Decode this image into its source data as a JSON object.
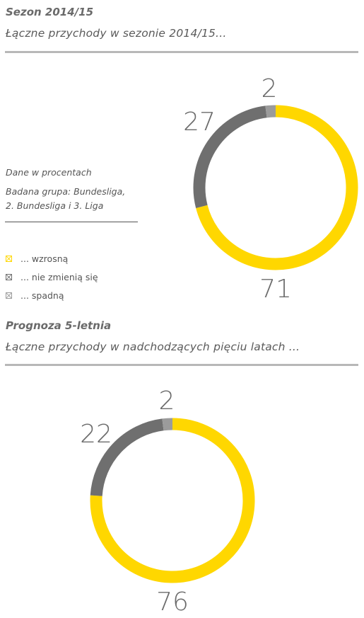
{
  "section1": {
    "title": "Sezon 2014/15",
    "subtitle": "Łączne przychody w sezonie 2014/15..."
  },
  "notes": {
    "unit": "Dane w procentach",
    "group_line1": "Badana grupa: Bundesliga,",
    "group_line2": "2. Bundesliga i 3. Liga"
  },
  "legend": [
    {
      "label": "... wzrosną",
      "color": "#FFD700"
    },
    {
      "label": "... nie zmienią się",
      "color": "#6F6F6F"
    },
    {
      "label": "... spadną",
      "color": "#9B9B9B"
    }
  ],
  "section2": {
    "title": "Prognoza 5-letnia",
    "subtitle": "Łączne przychody w nadchodzących pięciu latach ..."
  },
  "chart_data": [
    {
      "type": "pie",
      "variant": "donut",
      "categories": [
        "... wzrosną",
        "... nie zmienią się",
        "... spadną"
      ],
      "values": [
        71,
        27,
        2
      ],
      "colors": [
        "#FFD700",
        "#6F6F6F",
        "#9B9B9B"
      ],
      "unit": "%"
    },
    {
      "type": "pie",
      "variant": "donut",
      "categories": [
        "... wzrosną",
        "... nie zmienią się",
        "... spadną"
      ],
      "values": [
        76,
        22,
        2
      ],
      "colors": [
        "#FFD700",
        "#6F6F6F",
        "#9B9B9B"
      ],
      "unit": "%"
    }
  ]
}
